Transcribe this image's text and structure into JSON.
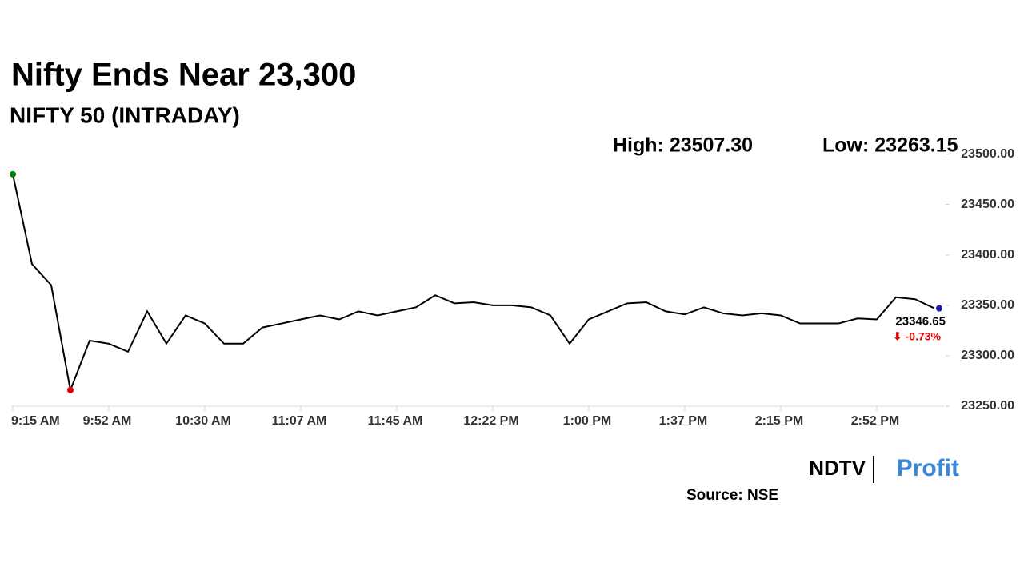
{
  "chart_data": {
    "type": "line",
    "title": "Nifty Ends Near 23,300",
    "subtitle": "NIFTY 50 (INTRADAY)",
    "annotations": {
      "high": "High: 23507.30",
      "low": "Low: 23263.15",
      "last": "23346.65",
      "change": "⬇ -0.73%"
    },
    "source": "Source: NSE",
    "logo": {
      "left": "NDTV",
      "right": "Profit"
    },
    "categories": [
      "9:15 AM",
      null,
      null,
      null,
      null,
      "9:52 AM",
      null,
      null,
      null,
      null,
      "10:30 AM",
      null,
      null,
      null,
      null,
      "11:07 AM",
      null,
      null,
      null,
      null,
      "11:45 AM",
      null,
      null,
      null,
      null,
      "12:22 PM",
      null,
      null,
      null,
      null,
      "1:00 PM",
      null,
      null,
      null,
      null,
      "1:37 PM",
      null,
      null,
      null,
      null,
      "2:15 PM",
      null,
      null,
      null,
      null,
      "2:52 PM",
      null,
      null,
      null
    ],
    "series": [
      {
        "name": "NIFTY 50",
        "color": "#000000",
        "values": [
          23480,
          23391,
          23370,
          23266,
          23315,
          23312,
          23304,
          23344,
          23312,
          23340,
          23332,
          23312,
          23312,
          23328,
          23332,
          23336,
          23340,
          23336,
          23344,
          23340,
          23344,
          23348,
          23360,
          23352,
          23353,
          23350,
          23350,
          23348,
          23340,
          23312,
          23336,
          23344,
          23352,
          23353,
          23344,
          23341,
          23348,
          23342,
          23340,
          23342,
          23340,
          23332,
          23332,
          23332,
          23337,
          23336,
          23358,
          23356,
          23347
        ]
      }
    ],
    "marker_colors": {
      "high": "#008000",
      "low": "#e00000",
      "last": "#1a1aa6"
    },
    "change_color": "#e00000",
    "ylim": [
      23250,
      23510
    ],
    "yticks": [
      {
        "value": 23250,
        "label": "23250.00"
      },
      {
        "value": 23300,
        "label": "23300.00"
      },
      {
        "value": 23350,
        "label": "23350.00"
      },
      {
        "value": 23400,
        "label": "23400.00"
      },
      {
        "value": 23450,
        "label": "23450.00"
      },
      {
        "value": 23500,
        "label": "23500.00"
      }
    ],
    "grid": false
  }
}
